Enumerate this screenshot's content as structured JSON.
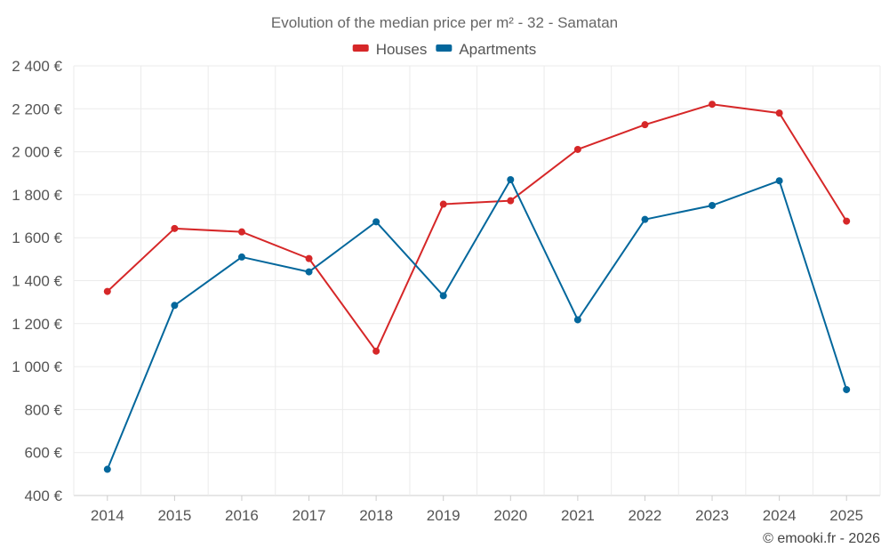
{
  "chart_data": {
    "type": "line",
    "title": "Evolution of the median price per m² - 32 - Samatan",
    "categories": [
      "2014",
      "2015",
      "2016",
      "2017",
      "2018",
      "2019",
      "2020",
      "2021",
      "2022",
      "2023",
      "2024",
      "2025"
    ],
    "series": [
      {
        "name": "Houses",
        "color": "#d62728",
        "values": [
          1350,
          1643,
          1627,
          1503,
          1072,
          1756,
          1772,
          2011,
          2126,
          2221,
          2180,
          1677
        ]
      },
      {
        "name": "Apartments",
        "color": "#03679c",
        "values": [
          522,
          1285,
          1510,
          1441,
          1674,
          1330,
          1870,
          1218,
          1685,
          1750,
          1865,
          893
        ]
      }
    ],
    "ylim": [
      400,
      2400
    ],
    "yticks": [
      400,
      600,
      800,
      1000,
      1200,
      1400,
      1600,
      1800,
      2000,
      2200,
      2400
    ],
    "ytick_labels": [
      "400 €",
      "600 €",
      "800 €",
      "1 000 €",
      "1 200 €",
      "1 400 €",
      "1 600 €",
      "1 800 €",
      "2 000 €",
      "2 200 €",
      "2 400 €"
    ],
    "xlabel": "",
    "ylabel": "",
    "grid": true,
    "legend_position": "top-center"
  },
  "credit": "© emooki.fr - 2026"
}
